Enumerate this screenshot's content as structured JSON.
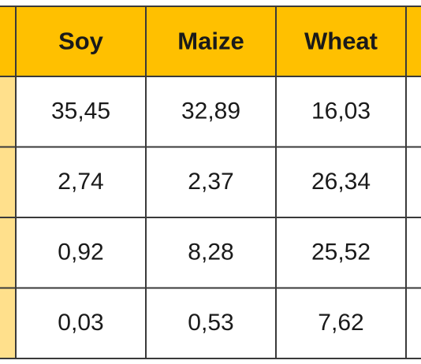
{
  "table": {
    "header": [
      "Soy",
      "Maize",
      "Wheat"
    ],
    "rows": [
      [
        "35,45",
        "32,89",
        "16,03"
      ],
      [
        "2,74",
        "2,37",
        "26,34"
      ],
      [
        "0,92",
        "8,28",
        "25,52"
      ],
      [
        "0,03",
        "0,53",
        "7,62"
      ]
    ]
  }
}
